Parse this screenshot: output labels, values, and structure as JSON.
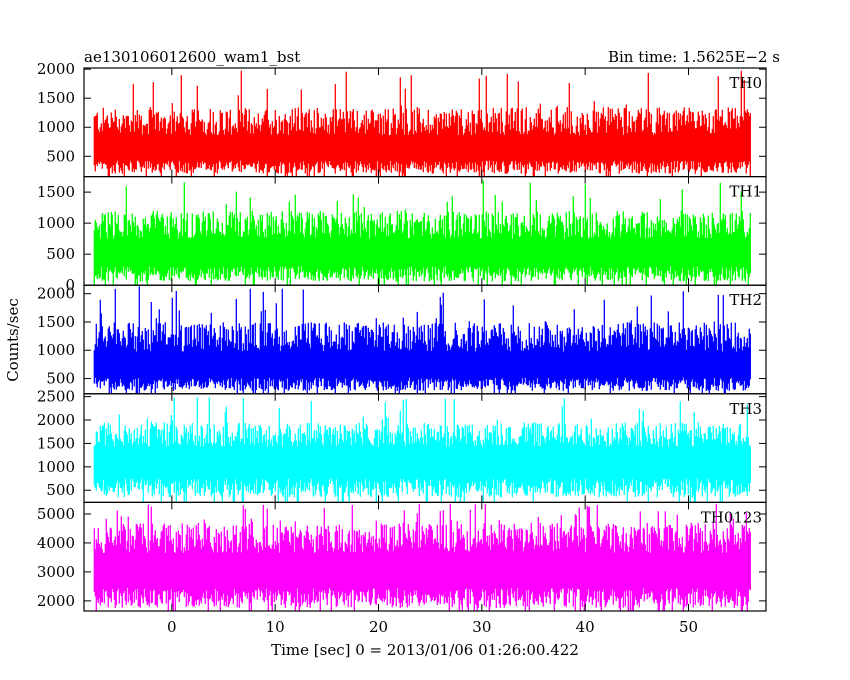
{
  "chart_data": {
    "type": "line",
    "title_left": "ae130106012600_wam1_bst",
    "title_right": "Bin time: 1.5625E−2 s",
    "xlabel": "Time [sec] 0 = 2013/01/06 01:26:00.422",
    "ylabel": "Counts/sec",
    "xlim": [
      -8.5,
      57.5
    ],
    "x_ticks": [
      "0",
      "10",
      "20",
      "30",
      "40",
      "50"
    ],
    "x_tick_values": [
      0,
      10,
      20,
      30,
      40,
      50
    ],
    "data_x_range": [
      -7.5,
      56.0
    ],
    "panels": [
      {
        "name": "TH0",
        "color": "#ff0000",
        "ylim": [
          150,
          2020
        ],
        "yticks": [
          500,
          1000,
          1500,
          2000
        ],
        "ytick_labels": [
          "500",
          "1000",
          "1500",
          "2000"
        ],
        "mean": 700,
        "typical_max": 1350,
        "peak": 2000,
        "floor": 200
      },
      {
        "name": "TH1",
        "color": "#00ff00",
        "ylim": [
          0,
          1750
        ],
        "yticks": [
          0,
          500,
          1000,
          1500
        ],
        "ytick_labels": [
          "0",
          "500",
          "1000",
          "1500"
        ],
        "mean": 600,
        "typical_max": 1200,
        "peak": 1700,
        "floor": 60
      },
      {
        "name": "TH2",
        "color": "#0000ff",
        "ylim": [
          230,
          2150
        ],
        "yticks": [
          500,
          1000,
          1500,
          2000
        ],
        "ytick_labels": [
          "500",
          "1000",
          "1500",
          "2000"
        ],
        "mean": 800,
        "typical_max": 1500,
        "peak": 2130,
        "floor": 280
      },
      {
        "name": "TH3",
        "color": "#00ffff",
        "ylim": [
          240,
          2560
        ],
        "yticks": [
          500,
          1000,
          1500,
          2000,
          2500
        ],
        "ytick_labels": [
          "500",
          "1000",
          "1500",
          "2000",
          "2500"
        ],
        "mean": 1250,
        "typical_max": 1950,
        "peak": 2500,
        "floor": 350
      },
      {
        "name": "TH0123",
        "color": "#ff00ff",
        "ylim": [
          1650,
          5400
        ],
        "yticks": [
          2000,
          3000,
          4000,
          5000
        ],
        "ytick_labels": [
          "2000",
          "3000",
          "4000",
          "5000"
        ],
        "mean": 3300,
        "typical_max": 4700,
        "peak": 5350,
        "floor": 1750
      }
    ]
  }
}
